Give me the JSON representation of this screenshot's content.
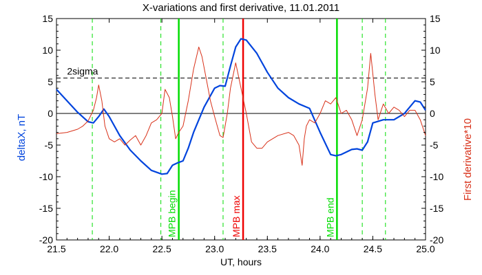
{
  "chart_data": {
    "type": "line",
    "title": "X-variations and first derivative, 11.01.2011",
    "xlabel": "UT, hours",
    "ylabel_left": "deltaX, nT",
    "ylabel_right": "First derivative*10",
    "xlim": [
      21.5,
      25.0
    ],
    "ylim": [
      -20,
      15
    ],
    "xticks": [
      "21.5",
      "22.0",
      "22.5",
      "23.0",
      "23.5",
      "24.0",
      "24.5",
      "25.0"
    ],
    "yticks": [
      "-20",
      "-15",
      "-10",
      "-5",
      "0",
      "5",
      "10",
      "15"
    ],
    "grid": false,
    "zero_line": 0,
    "sigma_line": {
      "value": 5.6,
      "label": "2sigma"
    },
    "vertical_markers": [
      {
        "x": 22.66,
        "label": "MPB begin",
        "color": "#00dd00",
        "style": "solid"
      },
      {
        "x": 23.27,
        "label": "MPB max",
        "color": "#ee0000",
        "style": "solid"
      },
      {
        "x": 24.16,
        "label": "MPB end",
        "color": "#00dd00",
        "style": "solid"
      },
      {
        "x": 21.84,
        "label": "",
        "color": "#00dd00",
        "style": "dashed"
      },
      {
        "x": 22.49,
        "label": "",
        "color": "#00dd00",
        "style": "dashed"
      },
      {
        "x": 23.08,
        "label": "",
        "color": "#00dd00",
        "style": "dashed"
      },
      {
        "x": 24.4,
        "label": "",
        "color": "#00dd00",
        "style": "dashed"
      },
      {
        "x": 24.62,
        "label": "",
        "color": "#00dd00",
        "style": "dashed"
      }
    ],
    "series": [
      {
        "color": "#0044dd",
        "x": [
          21.5,
          21.6,
          21.7,
          21.8,
          21.85,
          21.9,
          21.95,
          22.0,
          22.1,
          22.2,
          22.3,
          22.4,
          22.5,
          22.55,
          22.6,
          22.65,
          22.7,
          22.75,
          22.8,
          22.9,
          23.0,
          23.05,
          23.1,
          23.15,
          23.2,
          23.25,
          23.3,
          23.4,
          23.5,
          23.6,
          23.7,
          23.8,
          23.9,
          24.0,
          24.1,
          24.15,
          24.2,
          24.3,
          24.35,
          24.4,
          24.45,
          24.5,
          24.6,
          24.7,
          24.8,
          24.85,
          24.9,
          24.95,
          25.0
        ],
        "y": [
          3.8,
          2.0,
          0.2,
          -1.3,
          -1.5,
          -0.5,
          0.7,
          -0.5,
          -3.5,
          -5.8,
          -7.5,
          -9.0,
          -9.6,
          -9.5,
          -8.2,
          -7.8,
          -7.5,
          -5.5,
          -3.0,
          1.0,
          4.0,
          4.4,
          4.3,
          7.5,
          10.5,
          11.8,
          11.6,
          9.5,
          6.5,
          4.0,
          2.5,
          1.5,
          0.8,
          -3.0,
          -6.5,
          -6.7,
          -6.5,
          -5.7,
          -5.6,
          -5.8,
          -4.5,
          -1.5,
          -1.0,
          -1.0,
          0.0,
          1.0,
          2.0,
          1.8,
          0.5
        ]
      },
      {
        "color": "#d83018",
        "x": [
          21.5,
          21.6,
          21.7,
          21.75,
          21.8,
          21.85,
          21.88,
          21.9,
          21.93,
          21.96,
          22.0,
          22.05,
          22.1,
          22.15,
          22.2,
          22.25,
          22.3,
          22.35,
          22.4,
          22.45,
          22.5,
          22.53,
          22.57,
          22.6,
          22.63,
          22.66,
          22.7,
          22.75,
          22.8,
          22.85,
          22.88,
          22.92,
          22.96,
          23.0,
          23.05,
          23.08,
          23.12,
          23.15,
          23.2,
          23.25,
          23.3,
          23.35,
          23.4,
          23.45,
          23.5,
          23.6,
          23.7,
          23.75,
          23.8,
          23.83,
          23.85,
          23.87,
          23.9,
          23.95,
          24.0,
          24.05,
          24.1,
          24.15,
          24.2,
          24.25,
          24.3,
          24.35,
          24.4,
          24.45,
          24.48,
          24.52,
          24.55,
          24.6,
          24.65,
          24.7,
          24.75,
          24.8,
          24.85,
          24.9,
          24.95,
          25.0
        ],
        "y": [
          -3.2,
          -3.0,
          -2.5,
          -2.0,
          -1.2,
          0.5,
          2.5,
          4.5,
          2.0,
          -2.0,
          -4.0,
          -4.5,
          -4.0,
          -5.0,
          -4.2,
          -3.5,
          -5.0,
          -3.5,
          -1.5,
          -1.0,
          0.0,
          3.8,
          2.5,
          -0.5,
          -4.0,
          -3.0,
          -2.0,
          2.0,
          7.0,
          10.5,
          9.0,
          5.5,
          2.0,
          -0.5,
          -3.5,
          -3.8,
          0.0,
          4.0,
          8.0,
          4.0,
          0.0,
          -4.5,
          -5.5,
          -5.5,
          -4.5,
          -3.5,
          -3.0,
          -3.5,
          -5.0,
          -8.2,
          -4.0,
          -2.0,
          -1.0,
          -1.5,
          0.0,
          2.0,
          1.5,
          2.5,
          0.0,
          0.5,
          -1.0,
          -3.5,
          -1.0,
          4.0,
          9.5,
          3.0,
          -1.0,
          1.5,
          0.0,
          1.0,
          0.5,
          -0.5,
          0.5,
          0.5,
          -1.0,
          -3.5
        ]
      }
    ]
  }
}
